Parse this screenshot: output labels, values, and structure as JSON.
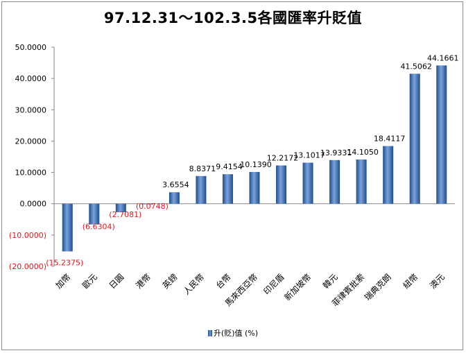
{
  "chart_data": {
    "type": "bar",
    "title": "97.12.31～102.3.5各國匯率升貶值",
    "categories": [
      "加幣",
      "歐元",
      "日圓",
      "港幣",
      "英鎊",
      "人民幣",
      "台幣",
      "馬來西亞幣",
      "印尼盾",
      "新加坡幣",
      "韓元",
      "菲律賓批索",
      "瑞典克朗",
      "紐幣",
      "澳元"
    ],
    "series": [
      {
        "name": "升(貶)值 (%)",
        "values": [
          -15.2375,
          -6.6304,
          -2.7081,
          -0.0748,
          3.6554,
          8.8371,
          9.4154,
          10.139,
          12.2172,
          13.1017,
          13.9331,
          14.105,
          18.4117,
          41.5062,
          44.1661
        ]
      }
    ],
    "data_labels": [
      "(15.2375)",
      "(6.6304)",
      "(2.7081)",
      "(0.0748)",
      "3.6554",
      "8.8371",
      "9.4154",
      "10.1390",
      "12.2172",
      "13.1017",
      "13.9331",
      "14.1050",
      "18.4117",
      "41.5062",
      "44.1661"
    ],
    "y_tick_labels": [
      "50.0000",
      "40.0000",
      "30.0000",
      "20.0000",
      "10.0000",
      "0.0000",
      "(10.0000)",
      "(20.0000)"
    ],
    "y_ticks": [
      50,
      40,
      30,
      20,
      10,
      0,
      -10,
      -20
    ],
    "ylim": [
      -20,
      50
    ],
    "xlabel": "",
    "ylabel": "",
    "grid": false,
    "legend": "bottom",
    "colors": {
      "bar": "#3a6fbf",
      "bar_dark": "#1f4e8c",
      "bar_light": "#7aa3dc",
      "negative_label": "#e8141b",
      "positive_label": "#000000",
      "axis": "#868686"
    }
  }
}
